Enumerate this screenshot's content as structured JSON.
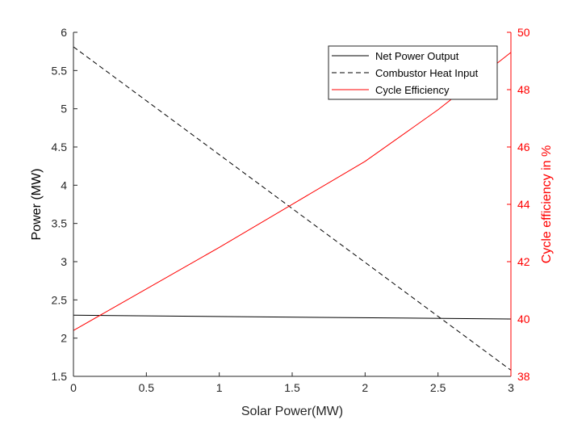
{
  "chart_data": {
    "type": "line",
    "xlabel": "Solar Power(MW)",
    "ylabel_left": "Power (MW)",
    "ylabel_right": "Cycle efficiency in %",
    "xlim": [
      0,
      3
    ],
    "ylim_left": [
      1.5,
      6
    ],
    "ylim_right": [
      38,
      50
    ],
    "x_ticks": [
      "0",
      "0.5",
      "1",
      "1.5",
      "2",
      "2.5",
      "3"
    ],
    "y_left_ticks": [
      "1.5",
      "2",
      "2.5",
      "3",
      "3.5",
      "4",
      "4.5",
      "5",
      "5.5",
      "6"
    ],
    "y_right_ticks": [
      "38",
      "40",
      "42",
      "44",
      "46",
      "48",
      "50"
    ],
    "grid": false,
    "legend_position": "top-right",
    "colors": {
      "black": "#000000",
      "red": "#ff0000"
    },
    "series": [
      {
        "name": "Net Power Output",
        "axis": "left",
        "style": "solid",
        "color": "#000000",
        "x": [
          0,
          3
        ],
        "y": [
          2.3,
          2.25
        ]
      },
      {
        "name": "Combustor Heat Input",
        "axis": "left",
        "style": "dashed",
        "color": "#000000",
        "x": [
          0,
          3
        ],
        "y": [
          5.81,
          1.58
        ]
      },
      {
        "name": "Cycle Efficiency",
        "axis": "right",
        "style": "solid",
        "color": "#ff0000",
        "x": [
          0,
          1,
          2,
          2.5,
          3
        ],
        "y": [
          39.6,
          42.5,
          45.5,
          47.3,
          49.3
        ]
      }
    ]
  }
}
